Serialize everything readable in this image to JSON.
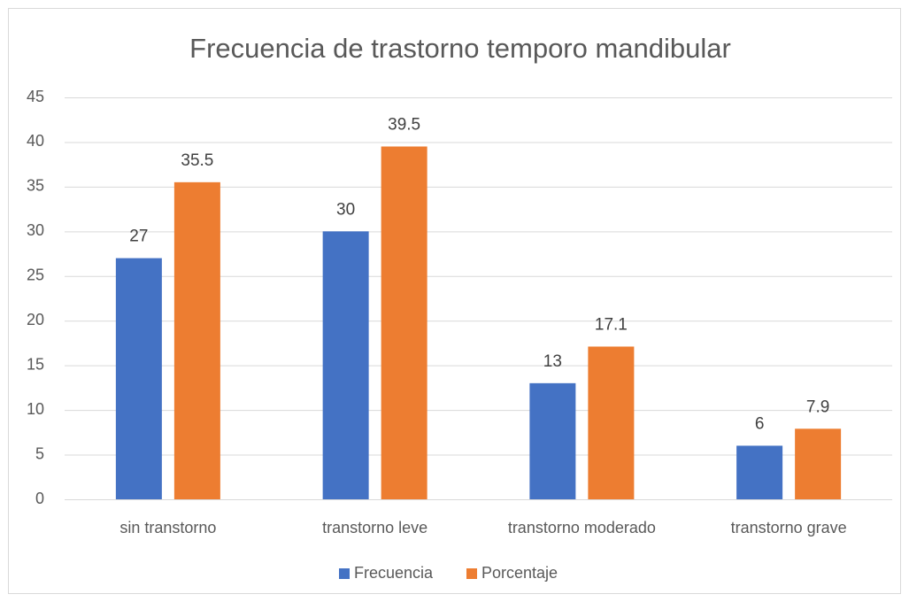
{
  "chart_data": {
    "type": "bar",
    "title": "Frecuencia de trastorno temporo mandibular",
    "categories": [
      "sin transtorno",
      "transtorno leve",
      "transtorno moderado",
      "transtorno grave"
    ],
    "series": [
      {
        "name": "Frecuencia",
        "color": "#4472c4",
        "values": [
          27,
          30,
          13,
          6
        ]
      },
      {
        "name": "Porcentaje",
        "color": "#ed7d31",
        "values": [
          35.5,
          39.5,
          17.1,
          7.9
        ]
      }
    ],
    "ylim": [
      0,
      45
    ],
    "yticks": [
      0,
      5,
      10,
      15,
      20,
      25,
      30,
      35,
      40,
      45
    ],
    "grid": true,
    "legend": "bottom"
  }
}
